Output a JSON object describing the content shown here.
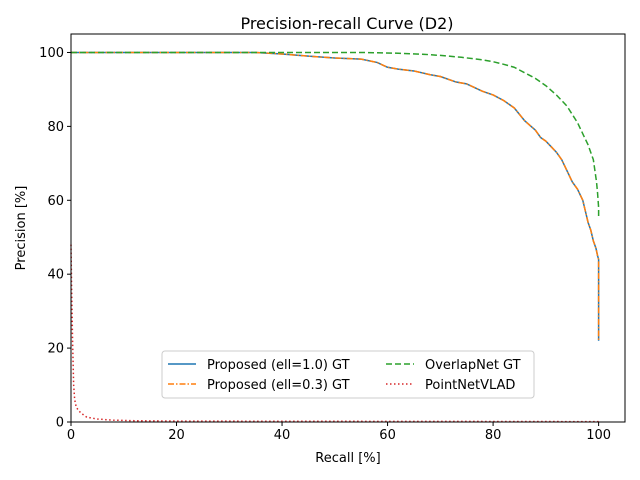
{
  "chart_data": {
    "type": "line",
    "title": "Precision-recall Curve (D2)",
    "xlabel": "Recall [%]",
    "ylabel": "Precision [%]",
    "xlim": [
      0,
      105
    ],
    "ylim": [
      0,
      105
    ],
    "xticks": [
      0,
      20,
      40,
      60,
      80,
      100
    ],
    "yticks": [
      0,
      20,
      40,
      60,
      80,
      100
    ],
    "grid": false,
    "legend_position": "lower-center",
    "legend_columns": 2,
    "series": [
      {
        "name": "Proposed (ell=1.0) GT",
        "color": "#1f77b4",
        "dash": "solid",
        "x": [
          0,
          10,
          20,
          30,
          35,
          40,
          45,
          50,
          55,
          58,
          60,
          62,
          65,
          68,
          70,
          73,
          75,
          78,
          80,
          82,
          84,
          86,
          88,
          89,
          90,
          91,
          92,
          93,
          94,
          95,
          96,
          97,
          97.5,
          98,
          98.5,
          99,
          99.5,
          99.8,
          100,
          100,
          100
        ],
        "y": [
          100,
          100,
          100,
          100,
          100,
          99.6,
          99,
          98.5,
          98.2,
          97.3,
          96,
          95.5,
          95,
          94,
          93.5,
          92,
          91.5,
          89.5,
          88.5,
          87,
          85,
          81.5,
          79,
          77,
          76,
          74.5,
          73,
          71,
          68,
          65,
          63,
          60,
          57,
          54,
          52,
          49,
          47,
          45,
          44,
          30,
          22
        ]
      },
      {
        "name": "Proposed (ell=0.3) GT",
        "color": "#ff7f0e",
        "dash": "dashdot",
        "x": [
          0,
          10,
          20,
          30,
          35,
          40,
          45,
          50,
          55,
          58,
          60,
          62,
          65,
          68,
          70,
          73,
          75,
          78,
          80,
          82,
          84,
          86,
          88,
          89,
          90,
          91,
          92,
          93,
          94,
          95,
          96,
          97,
          97.5,
          98,
          98.5,
          99,
          99.5,
          99.8,
          100,
          100,
          100
        ],
        "y": [
          100,
          100,
          100,
          100,
          100,
          99.6,
          99,
          98.5,
          98.2,
          97.3,
          96,
          95.5,
          95,
          94,
          93.5,
          92,
          91.5,
          89.5,
          88.5,
          87,
          85,
          81.5,
          79,
          77,
          76,
          74.5,
          73,
          71,
          68,
          65,
          63,
          60,
          57,
          54,
          52,
          49,
          47,
          45,
          44,
          30,
          22
        ]
      },
      {
        "name": "OverlapNet GT",
        "color": "#2ca02c",
        "dash": "dashed",
        "x": [
          0,
          20,
          40,
          55,
          62,
          67,
          70,
          74,
          78,
          80,
          82,
          84,
          86,
          88,
          90,
          92,
          94,
          96,
          97,
          98,
          98.5,
          99,
          99.3,
          99.6,
          99.8,
          100,
          100
        ],
        "y": [
          100,
          100,
          100,
          100,
          99.8,
          99.5,
          99.2,
          98.7,
          98,
          97.5,
          96.8,
          96,
          94.5,
          93,
          91,
          88.5,
          85.5,
          81,
          78,
          75,
          73,
          71,
          68,
          65,
          62,
          58,
          55
        ]
      },
      {
        "name": "PointNetVLAD",
        "color": "#d62728",
        "dash": "dotted",
        "x": [
          0,
          0.1,
          0.2,
          0.3,
          0.4,
          0.5,
          0.7,
          1,
          1.5,
          2,
          3,
          5,
          8,
          12,
          20,
          40,
          60,
          80,
          100
        ],
        "y": [
          48,
          38,
          30,
          22,
          16,
          10,
          6,
          4,
          3,
          2.3,
          1.3,
          0.8,
          0.5,
          0.35,
          0.25,
          0.2,
          0.18,
          0.15,
          0.1
        ]
      }
    ]
  }
}
